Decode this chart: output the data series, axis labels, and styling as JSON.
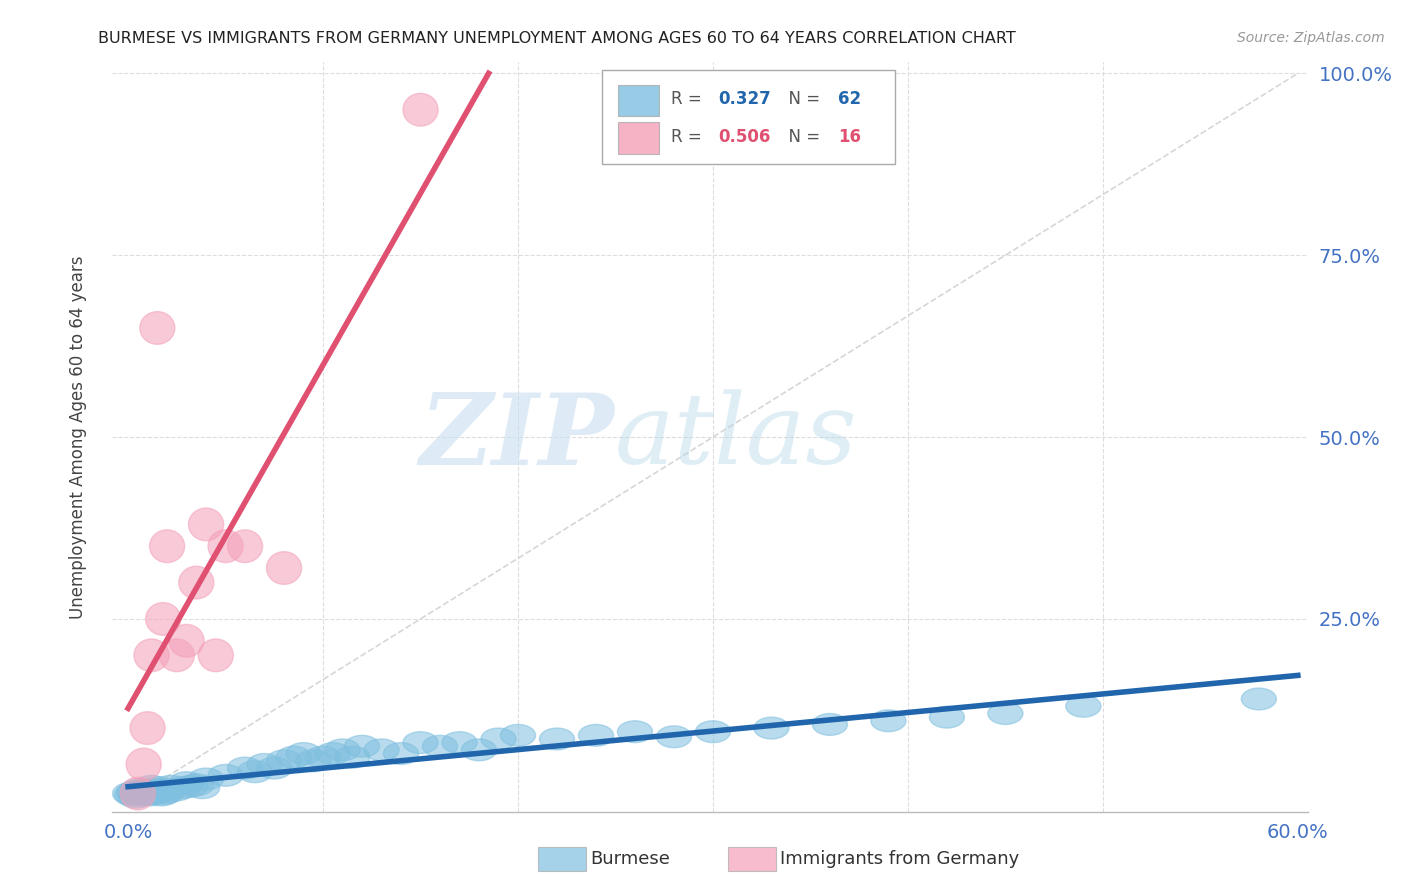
{
  "title": "BURMESE VS IMMIGRANTS FROM GERMANY UNEMPLOYMENT AMONG AGES 60 TO 64 YEARS CORRELATION CHART",
  "source": "Source: ZipAtlas.com",
  "ylabel": "Unemployment Among Ages 60 to 64 years",
  "watermark_zip": "ZIP",
  "watermark_atlas": "atlas",
  "xlim": [
    0.0,
    0.6
  ],
  "ylim": [
    0.0,
    1.0
  ],
  "burmese_color": "#7fbfdf",
  "germany_color": "#f4a0b8",
  "burmese_line_color": "#2166ac",
  "germany_line_color": "#e05070",
  "legend_R_burmese": "0.327",
  "legend_N_burmese": "62",
  "legend_R_germany": "0.506",
  "legend_N_germany": "16",
  "burmese_x": [
    0.001,
    0.002,
    0.003,
    0.004,
    0.005,
    0.006,
    0.007,
    0.008,
    0.009,
    0.01,
    0.011,
    0.012,
    0.013,
    0.014,
    0.015,
    0.016,
    0.017,
    0.018,
    0.019,
    0.02,
    0.022,
    0.025,
    0.028,
    0.03,
    0.032,
    0.035,
    0.038,
    0.04,
    0.05,
    0.06,
    0.065,
    0.07,
    0.075,
    0.08,
    0.085,
    0.09,
    0.095,
    0.1,
    0.105,
    0.11,
    0.115,
    0.12,
    0.13,
    0.14,
    0.15,
    0.16,
    0.17,
    0.18,
    0.19,
    0.2,
    0.22,
    0.24,
    0.26,
    0.28,
    0.3,
    0.33,
    0.36,
    0.39,
    0.42,
    0.45,
    0.49,
    0.58
  ],
  "burmese_y": [
    0.01,
    0.008,
    0.012,
    0.005,
    0.015,
    0.01,
    0.008,
    0.012,
    0.015,
    0.01,
    0.008,
    0.02,
    0.015,
    0.01,
    0.012,
    0.018,
    0.008,
    0.015,
    0.01,
    0.012,
    0.02,
    0.015,
    0.018,
    0.025,
    0.02,
    0.022,
    0.018,
    0.03,
    0.035,
    0.045,
    0.04,
    0.05,
    0.045,
    0.055,
    0.06,
    0.065,
    0.055,
    0.06,
    0.065,
    0.07,
    0.06,
    0.075,
    0.07,
    0.065,
    0.08,
    0.075,
    0.08,
    0.07,
    0.085,
    0.09,
    0.085,
    0.09,
    0.095,
    0.088,
    0.095,
    0.1,
    0.105,
    0.11,
    0.115,
    0.12,
    0.13,
    0.14
  ],
  "germany_x": [
    0.005,
    0.008,
    0.01,
    0.012,
    0.015,
    0.018,
    0.02,
    0.025,
    0.03,
    0.035,
    0.04,
    0.045,
    0.05,
    0.06,
    0.08,
    0.15
  ],
  "germany_y": [
    0.01,
    0.05,
    0.1,
    0.2,
    0.65,
    0.25,
    0.35,
    0.2,
    0.22,
    0.3,
    0.38,
    0.2,
    0.35,
    0.35,
    0.32,
    0.95
  ],
  "diag_color": "#cccccc",
  "background_color": "#ffffff",
  "grid_color": "#dddddd",
  "tick_color": "#4472c4",
  "title_color": "#222222",
  "source_color": "#999999",
  "ylabel_color": "#444444"
}
